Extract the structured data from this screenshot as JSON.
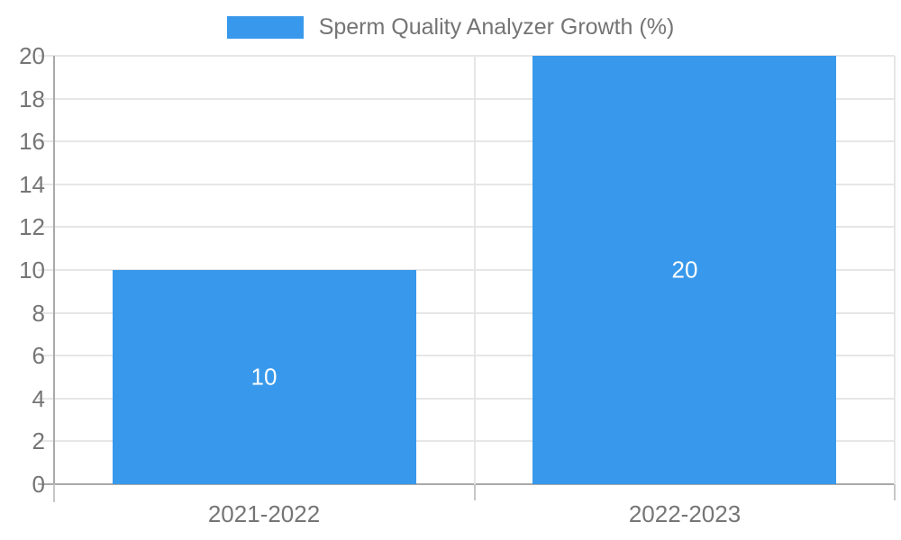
{
  "chart_data": {
    "type": "bar",
    "title": "Sperm Quality Analyzer Growth (%)",
    "categories": [
      "2021-2022",
      "2022-2023"
    ],
    "values": [
      10,
      20
    ],
    "bar_value_labels": [
      "10",
      "20"
    ],
    "xlabel": "",
    "ylabel": "",
    "ylim": [
      0,
      20
    ],
    "yticks": [
      0,
      2,
      4,
      6,
      8,
      10,
      12,
      14,
      16,
      18,
      20
    ],
    "grid": true,
    "legend_position": "top",
    "colors": {
      "bar": "#3899EC",
      "grid": "#E6E6E6",
      "axis": "#A9A9A9",
      "tick": "#C6C6C6",
      "axis_text": "#757575",
      "legend_text": "#747474",
      "bar_label_text": "#FFFFFF",
      "background": "#FFFFFF"
    }
  }
}
